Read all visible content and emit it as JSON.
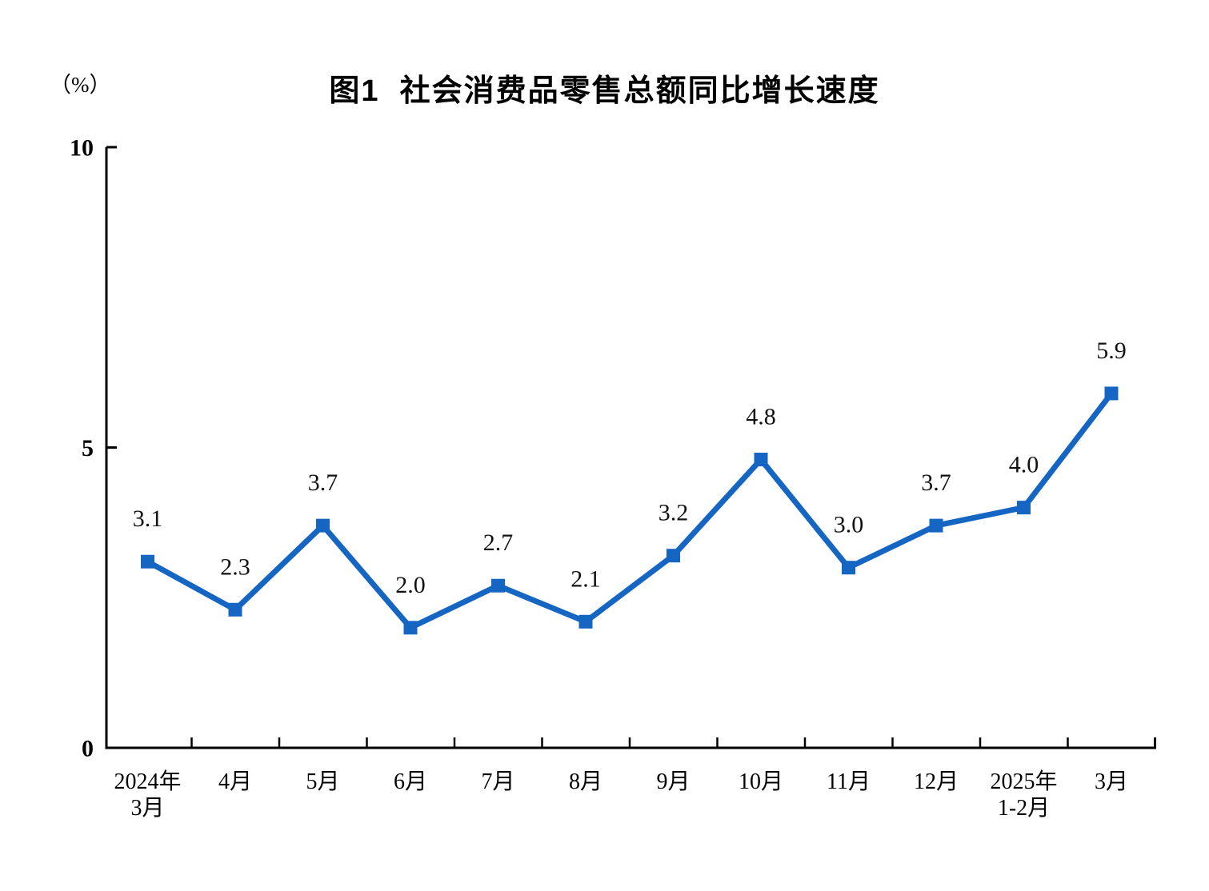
{
  "page": {
    "background_color": "#ffffff"
  },
  "chart_data": {
    "type": "line",
    "title": "图1  社会消费品零售总额同比增长速度",
    "unit_label": "（%）",
    "categories": [
      "2024年\n3月",
      "4月",
      "5月",
      "6月",
      "7月",
      "8月",
      "9月",
      "10月",
      "11月",
      "12月",
      "2025年\n1-2月",
      "3月"
    ],
    "values": [
      3.1,
      2.3,
      3.7,
      2.0,
      2.7,
      2.1,
      3.2,
      4.8,
      3.0,
      3.7,
      4.0,
      5.9
    ],
    "point_labels": [
      "3.1",
      "2.3",
      "3.7",
      "2.0",
      "2.7",
      "2.1",
      "3.2",
      "4.8",
      "3.0",
      "3.7",
      "4.0",
      "5.9"
    ],
    "ylim": [
      0,
      10
    ],
    "yticks": [
      0,
      5,
      10
    ],
    "grid": false,
    "legend": "none",
    "marker": "square",
    "line_color": "#1565c3",
    "marker_color": "#1565c3",
    "axis_color": "#000000",
    "label_color": "#111111"
  }
}
